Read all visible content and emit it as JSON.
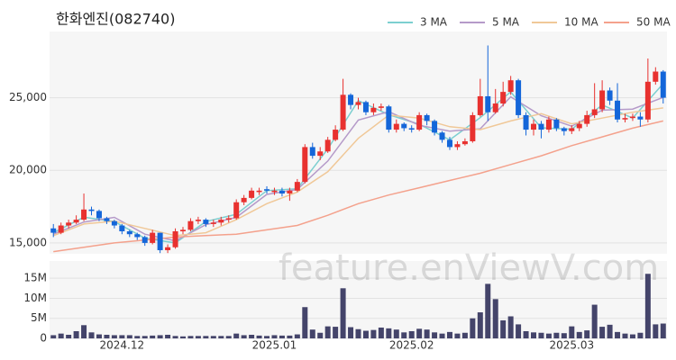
{
  "chart_data": {
    "type": "candlestick",
    "title": "한화엔진(082740)",
    "watermark": "feature.enViewV.com",
    "categories": [
      null,
      null,
      null,
      null,
      null,
      null,
      null,
      null,
      null,
      "2024.12",
      null,
      null,
      null,
      null,
      null,
      null,
      null,
      null,
      null,
      null,
      null,
      null,
      null,
      null,
      null,
      null,
      null,
      null,
      null,
      "2025.01",
      null,
      null,
      null,
      null,
      null,
      null,
      null,
      null,
      null,
      null,
      null,
      null,
      null,
      null,
      null,
      null,
      null,
      "2025.02",
      null,
      null,
      null,
      null,
      null,
      null,
      null,
      null,
      null,
      null,
      null,
      null,
      null,
      null,
      null,
      null,
      null,
      null,
      null,
      null,
      "2025.03",
      null,
      null,
      null,
      null,
      null,
      null,
      null,
      null,
      null,
      null,
      null,
      null
    ],
    "open": [
      16000,
      15700,
      16200,
      16400,
      16600,
      17300,
      17200,
      16700,
      16500,
      16200,
      15800,
      15600,
      15400,
      15000,
      15700,
      14500,
      14700,
      15800,
      15900,
      16500,
      16600,
      16300,
      16400,
      16600,
      16700,
      17800,
      18100,
      18500,
      18700,
      18500,
      18600,
      18400,
      18600,
      19200,
      21600,
      21000,
      21300,
      22100,
      22800,
      25200,
      24500,
      24700,
      24000,
      24300,
      24400,
      22800,
      23200,
      22900,
      22800,
      23800,
      23400,
      22600,
      22100,
      21600,
      21800,
      22000,
      23800,
      25100,
      24000,
      24600,
      25400,
      26200,
      23800,
      22800,
      23200,
      22800,
      23500,
      22900,
      22700,
      22900,
      23200,
      23800,
      24200,
      25500,
      24800,
      23500,
      23600,
      23700,
      23500,
      26100,
      26800
    ],
    "high": [
      16300,
      16400,
      16600,
      16900,
      18400,
      17500,
      17300,
      16800,
      16600,
      16300,
      15900,
      15700,
      15500,
      15900,
      15700,
      14900,
      16000,
      16100,
      16700,
      16800,
      16700,
      16600,
      16800,
      16900,
      18000,
      18300,
      18800,
      18800,
      18900,
      18800,
      18800,
      18800,
      19400,
      21800,
      21900,
      21600,
      22300,
      23100,
      26300,
      25300,
      25000,
      24800,
      24600,
      24600,
      24500,
      23500,
      23300,
      23100,
      24000,
      23900,
      23500,
      22700,
      22300,
      22000,
      22200,
      24000,
      26300,
      28600,
      25600,
      26100,
      26500,
      26300,
      24000,
      23500,
      23400,
      23700,
      23600,
      23000,
      23100,
      23400,
      24100,
      26000,
      26200,
      25700,
      26000,
      23900,
      23900,
      24000,
      27700,
      27100,
      26900
    ],
    "low": [
      15400,
      15600,
      16000,
      16300,
      16500,
      16900,
      16500,
      16300,
      16000,
      15600,
      15400,
      15200,
      14800,
      14900,
      14300,
      14300,
      14600,
      15600,
      15800,
      16300,
      16100,
      16100,
      16200,
      16400,
      16600,
      17600,
      18000,
      18300,
      18400,
      18300,
      18200,
      17900,
      18500,
      19100,
      20800,
      20700,
      21200,
      22000,
      22700,
      24200,
      24200,
      23800,
      23800,
      24100,
      22600,
      22600,
      22700,
      22600,
      22700,
      23100,
      22400,
      21900,
      21400,
      21400,
      21700,
      21900,
      23700,
      23400,
      23900,
      24400,
      25200,
      23600,
      22400,
      22400,
      22200,
      22600,
      22700,
      22400,
      22500,
      22700,
      23000,
      23600,
      24000,
      24500,
      23300,
      23300,
      23400,
      23000,
      23300,
      25900,
      24600
    ],
    "close": [
      15700,
      16200,
      16400,
      16600,
      17300,
      17200,
      16700,
      16500,
      16200,
      15800,
      15600,
      15400,
      15000,
      15700,
      14500,
      14700,
      15800,
      15900,
      16500,
      16600,
      16300,
      16400,
      16600,
      16700,
      17800,
      18100,
      18600,
      18600,
      18600,
      18600,
      18400,
      18600,
      19200,
      21600,
      21000,
      21300,
      22100,
      22800,
      25200,
      24500,
      24700,
      24000,
      24300,
      24400,
      22800,
      23200,
      22900,
      22800,
      23800,
      23400,
      22600,
      22100,
      21600,
      21800,
      22000,
      23800,
      25100,
      24000,
      24600,
      25400,
      26200,
      23800,
      22800,
      23200,
      22800,
      23500,
      22900,
      22700,
      22900,
      23200,
      23800,
      24200,
      25500,
      24800,
      23500,
      23600,
      23700,
      23500,
      26100,
      26800,
      25000
    ],
    "up_color": "#e8312f",
    "down_color": "#1466d9",
    "ylim": [
      14250,
      29560
    ],
    "yticks": [
      {
        "value": 15000,
        "label": "15,000"
      },
      {
        "value": 20000,
        "label": "20,000"
      },
      {
        "value": 25000,
        "label": "25,000"
      }
    ],
    "grid": true,
    "moving_averages": {
      "x": [
        0,
        4,
        8,
        12,
        16,
        20,
        24,
        28,
        32,
        36,
        40,
        44,
        48,
        52,
        56,
        60,
        64,
        68,
        72,
        76,
        80
      ],
      "series": [
        {
          "name": "3 MA",
          "color": "#7ccfd0",
          "values": [
            15700,
            16770,
            16470,
            15330,
            15000,
            16470,
            16970,
            18600,
            18730,
            21470,
            24800,
            23830,
            23170,
            22100,
            23630,
            25400,
            22930,
            22830,
            24500,
            23600,
            25970
          ]
        },
        {
          "name": "5 MA",
          "color": "#b59ac9",
          "values": [
            15600,
            16440,
            16760,
            15600,
            15140,
            16260,
            16760,
            18340,
            18680,
            20640,
            23460,
            24040,
            23100,
            22700,
            22860,
            25060,
            23760,
            23040,
            24140,
            24220,
            25020
          ]
        },
        {
          "name": "10 MA",
          "color": "#f0c898",
          "values": [
            15500,
            16300,
            16500,
            16000,
            15500,
            15700,
            16600,
            17700,
            18500,
            19900,
            22200,
            23800,
            23600,
            23000,
            22800,
            23400,
            23900,
            23200,
            23600,
            24000,
            24300
          ]
        },
        {
          "name": "50 MA",
          "color": "#f4a18c",
          "values": [
            14400,
            14700,
            15000,
            15200,
            15400,
            15500,
            15600,
            15900,
            16200,
            16900,
            17700,
            18300,
            18800,
            19300,
            19800,
            20400,
            21000,
            21700,
            22300,
            22900,
            23400
          ]
        }
      ]
    },
    "volume": {
      "color": "#44446a",
      "ylim": [
        0,
        19300000
      ],
      "yticks": [
        0,
        {
          "value": 5000000,
          "label": "5M"
        },
        {
          "value": 10000000,
          "label": "10M"
        },
        {
          "value": 15000000,
          "label": "15M"
        }
      ],
      "values": [
        800000,
        1200000,
        900000,
        1800000,
        3300000,
        1500000,
        1000000,
        900000,
        800000,
        800000,
        800000,
        600000,
        600000,
        700000,
        800000,
        900000,
        600000,
        500000,
        600000,
        600000,
        600000,
        600000,
        600000,
        600000,
        1200000,
        800000,
        900000,
        700000,
        600000,
        800000,
        700000,
        700000,
        1000000,
        7800000,
        2200000,
        1400000,
        3000000,
        2900000,
        12500000,
        2800000,
        2300000,
        1900000,
        2100000,
        2700000,
        2500000,
        2200000,
        1500000,
        1800000,
        2400000,
        2200000,
        1500000,
        1200000,
        1600000,
        1200000,
        1400000,
        5000000,
        6500000,
        13600000,
        9800000,
        4500000,
        5500000,
        3500000,
        1800000,
        1500000,
        1400000,
        1200000,
        1400000,
        1300000,
        3000000,
        1600000,
        2000000,
        8400000,
        2900000,
        3400000,
        1600000,
        1200000,
        1000000,
        1400000,
        16100000,
        3500000,
        3700000
      ]
    }
  }
}
